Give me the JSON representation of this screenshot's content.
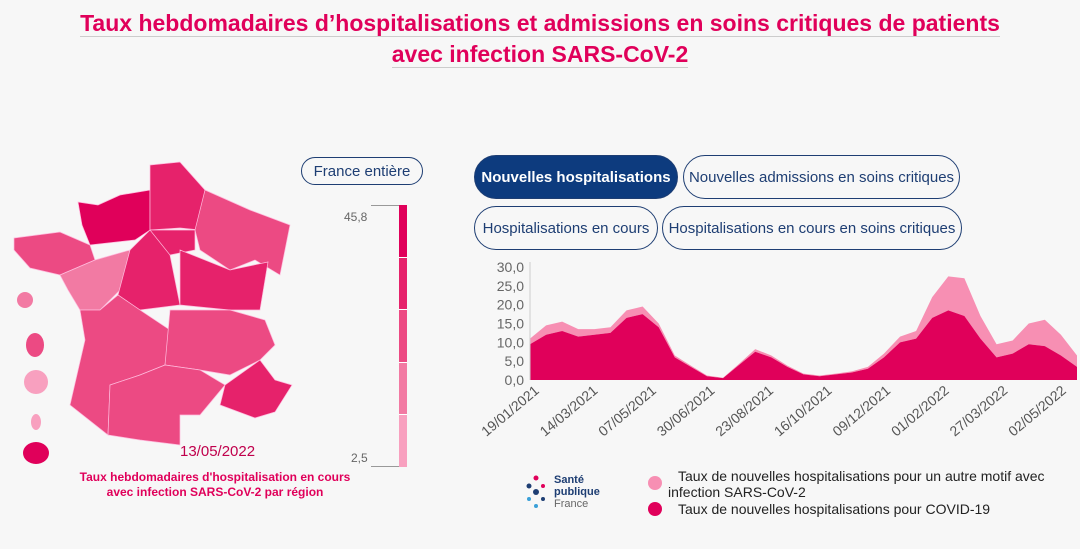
{
  "title": {
    "line1": "Taux hebdomadaires d’hospitalisations et admissions en soins critiques de patients",
    "line2": "avec infection SARS-CoV-2"
  },
  "map": {
    "region_button": "France entière",
    "date": "13/05/2022",
    "caption_line1": "Taux hebdomadaires d'hospitalisation en cours",
    "caption_line2": "avec infection SARS-CoV-2 par région",
    "scale_max": "45,8",
    "scale_min": "2,5",
    "scale_colors": [
      "#e0005a",
      "#e6226b",
      "#ec4a83",
      "#f27aa3",
      "#f8a0bf"
    ]
  },
  "tabs": [
    {
      "label": "Nouvelles hospitalisations",
      "active": true
    },
    {
      "label": "Nouvelles admissions en soins critiques"
    },
    {
      "label": "Hospitalisations en cours"
    },
    {
      "label": "Hospitalisations en cours en soins critiques"
    }
  ],
  "logo": {
    "line1": "Santé",
    "line2": "publique",
    "line3": "France"
  },
  "chart_data": {
    "type": "area",
    "stacked": true,
    "ylim": [
      0,
      30
    ],
    "yticks": [
      "0,0",
      "5,0",
      "10,0",
      "15,0",
      "20,0",
      "25,0",
      "30,0"
    ],
    "xticks": [
      "19/01/2021",
      "14/03/2021",
      "07/05/2021",
      "30/06/2021",
      "23/08/2021",
      "16/10/2021",
      "09/12/2021",
      "01/02/2022",
      "27/03/2022",
      "02/05/2022"
    ],
    "colors": {
      "covid": "#e0005a",
      "other": "#f78fb3"
    },
    "series": [
      {
        "name": "Taux de nouvelles hospitalisations pour un autre motif avec infection SARS-CoV-2",
        "legend_line1": "Taux de nouvelles hospitalisations pour un autre motif avec",
        "legend_line2": "infection SARS-CoV-2",
        "values": [
          1.5,
          2.5,
          2.5,
          2,
          1.5,
          1.5,
          2,
          2,
          1,
          0.5,
          0.3,
          0.2,
          0.1,
          0.3,
          0.7,
          0.5,
          0.3,
          0.2,
          0.2,
          0.2,
          0.3,
          0.5,
          1,
          1.5,
          2,
          5.5,
          9,
          10,
          6,
          3.5,
          3.5,
          5.5,
          7,
          5.5,
          3
        ]
      },
      {
        "name": "Taux de nouvelles hospitalisations pour COVID-19",
        "values": [
          9.5,
          12,
          13,
          11.5,
          12,
          12.5,
          16.5,
          17.5,
          14,
          6,
          3.5,
          1,
          0.5,
          4,
          7.5,
          6,
          3.5,
          1.5,
          1,
          1.5,
          2,
          3,
          6,
          10,
          11,
          16.5,
          18.5,
          17,
          11,
          6,
          7,
          9.5,
          9,
          6.5,
          3.5
        ]
      }
    ]
  }
}
